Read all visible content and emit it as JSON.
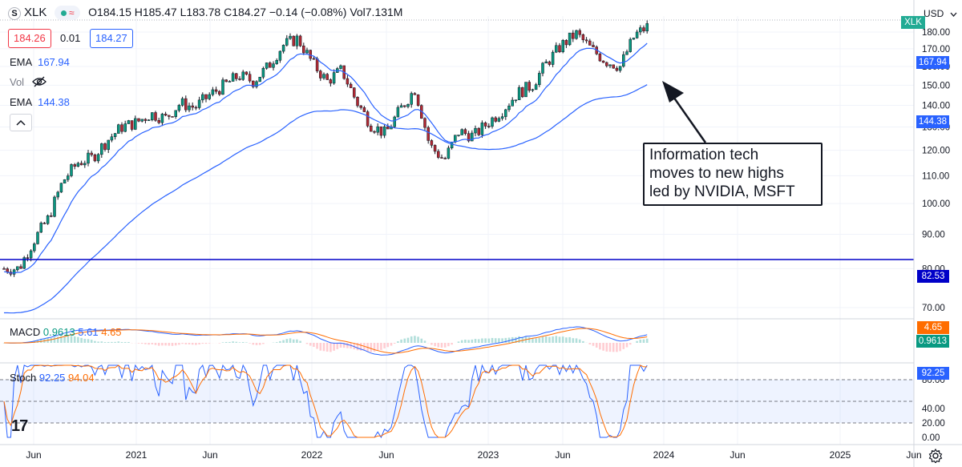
{
  "header": {
    "symbol_icon": "S",
    "symbol": "XLK",
    "status_icon": "market-open-icon",
    "indicator_icon": "wave-icon",
    "open": "O184.15",
    "high": "H185.47",
    "low": "L183.78",
    "close": "C184.27",
    "change": "−0.14 (−0.08%)",
    "volume": "Vol7.131M"
  },
  "order": {
    "sell_price": "184.26",
    "spread": "0.01",
    "buy_price": "184.27"
  },
  "indicators": {
    "ema1_label": "EMA",
    "ema1_value": "167.94",
    "vol_label": "Vol",
    "vol_icon": "eye-off-icon",
    "ema2_label": "EMA",
    "ema2_value": "144.38",
    "collapse_icon": "chevron-up-icon"
  },
  "macd": {
    "label": "MACD",
    "v1": "0.9613",
    "v2": "5.61",
    "v3": "4.65"
  },
  "stoch": {
    "label": "Stoch",
    "k": "92.25",
    "d": "94.04"
  },
  "currency": "USD",
  "annotation": {
    "line1": "Information tech",
    "line2": "moves to new highs",
    "line3": "led by NVIDIA, MSFT"
  },
  "right_tags": {
    "symbol": "XLK",
    "ema1": "167.94",
    "ema2": "144.38",
    "hline": "82.53",
    "macd_signal": "4.65",
    "macd_value": "0.9613",
    "stoch_k": "92.25"
  },
  "logo_text": "17",
  "colors": {
    "up": "#26a69a",
    "down": "#ef5350",
    "candle_up": "#089981",
    "candle_down": "#b22833",
    "ema_fast": "#2962ff",
    "ema_slow": "#2962ff",
    "hline": "#0000c8",
    "macd_line": "#2962ff",
    "signal_line": "#ff6d00",
    "stoch_k": "#2962ff",
    "stoch_d": "#ff6d00"
  },
  "chart_data": [
    {
      "type": "candlestick",
      "title": "XLK",
      "x_ticks": [
        "Jun",
        "2021",
        "Jun",
        "2022",
        "Jun",
        "2023",
        "Jun",
        "2024",
        "Jun",
        "2025",
        "Jun"
      ],
      "y_ticks": [
        "180.00",
        "170.00",
        "160.00",
        "150.00",
        "140.00",
        "130.00",
        "120.00",
        "110.00",
        "100.00",
        "90.00",
        "80.00",
        "70.00"
      ],
      "ylim": [
        64,
        188
      ],
      "scale": "log",
      "close_path": [
        {
          "x": "2020-05",
          "y": 80
        },
        {
          "x": "2020-06",
          "y": 88
        },
        {
          "x": "2020-07",
          "y": 95
        },
        {
          "x": "2020-08",
          "y": 108
        },
        {
          "x": "2020-09",
          "y": 115
        },
        {
          "x": "2020-10",
          "y": 117
        },
        {
          "x": "2020-11",
          "y": 124
        },
        {
          "x": "2020-12",
          "y": 130
        },
        {
          "x": "2021-01",
          "y": 132
        },
        {
          "x": "2021-02",
          "y": 136
        },
        {
          "x": "2021-03",
          "y": 134
        },
        {
          "x": "2021-04",
          "y": 141
        },
        {
          "x": "2021-05",
          "y": 139
        },
        {
          "x": "2021-06",
          "y": 145
        },
        {
          "x": "2021-07",
          "y": 150
        },
        {
          "x": "2021-08",
          "y": 155
        },
        {
          "x": "2021-09",
          "y": 152
        },
        {
          "x": "2021-10",
          "y": 160
        },
        {
          "x": "2021-11",
          "y": 172
        },
        {
          "x": "2021-12",
          "y": 176
        },
        {
          "x": "2022-01",
          "y": 162
        },
        {
          "x": "2022-02",
          "y": 152
        },
        {
          "x": "2022-03",
          "y": 158
        },
        {
          "x": "2022-04",
          "y": 142
        },
        {
          "x": "2022-05",
          "y": 131
        },
        {
          "x": "2022-06",
          "y": 127
        },
        {
          "x": "2022-07",
          "y": 138
        },
        {
          "x": "2022-08",
          "y": 148
        },
        {
          "x": "2022-09",
          "y": 122
        },
        {
          "x": "2022-10",
          "y": 116
        },
        {
          "x": "2022-11",
          "y": 128
        },
        {
          "x": "2022-12",
          "y": 126
        },
        {
          "x": "2023-01",
          "y": 132
        },
        {
          "x": "2023-02",
          "y": 138
        },
        {
          "x": "2023-03",
          "y": 146
        },
        {
          "x": "2023-04",
          "y": 150
        },
        {
          "x": "2023-05",
          "y": 162
        },
        {
          "x": "2023-06",
          "y": 172
        },
        {
          "x": "2023-07",
          "y": 179
        },
        {
          "x": "2023-08",
          "y": 170
        },
        {
          "x": "2023-09",
          "y": 163
        },
        {
          "x": "2023-10",
          "y": 160
        },
        {
          "x": "2023-11",
          "y": 178
        },
        {
          "x": "2023-12",
          "y": 184.27
        }
      ],
      "horizontal_line": 82.53,
      "ema_fast_last": 167.94,
      "ema_slow_last": 144.38
    },
    {
      "type": "macd",
      "values": {
        "macd": 0.9613,
        "histogram": 5.61,
        "signal": 4.65
      }
    },
    {
      "type": "stochastic",
      "y_ticks": [
        "80.00",
        "40.00",
        "20.00",
        "0.00"
      ],
      "ylim": [
        0,
        100
      ],
      "bands": [
        20,
        50,
        80
      ],
      "values": {
        "k": 92.25,
        "d": 94.04
      }
    }
  ]
}
